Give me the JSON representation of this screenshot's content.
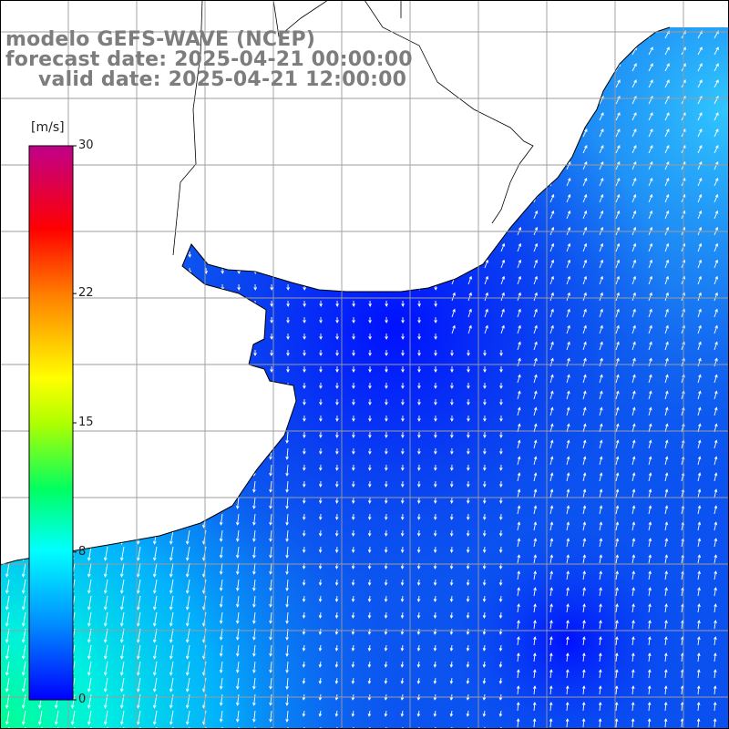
{
  "title": {
    "line1": "modelo GEFS-WAVE (NCEP)",
    "line2": "forecast date: 2025-04-21 00:00:00",
    "line3": "valid date: 2025-04-21 12:00:00"
  },
  "colorbar": {
    "unit": "[m/s]",
    "min": 0,
    "max": 30,
    "ticks": [
      {
        "label": "30",
        "value": 30
      },
      {
        "label": "22",
        "value": 22
      },
      {
        "label": "15",
        "value": 15
      },
      {
        "label": "8",
        "value": 8
      },
      {
        "label": "0",
        "value": 0
      }
    ],
    "color_stops": [
      "#0000ff",
      "#00a0ff",
      "#00ffff",
      "#00ff40",
      "#a0ff00",
      "#ffff00",
      "#ff8000",
      "#ff0000",
      "#c00080"
    ]
  },
  "map": {
    "field": "wind speed and direction",
    "ocean_base_color": "#0f4ff0",
    "land_color": "#ffffff",
    "grid_color": "#a0a0a0",
    "coastline_color": "#000000"
  }
}
